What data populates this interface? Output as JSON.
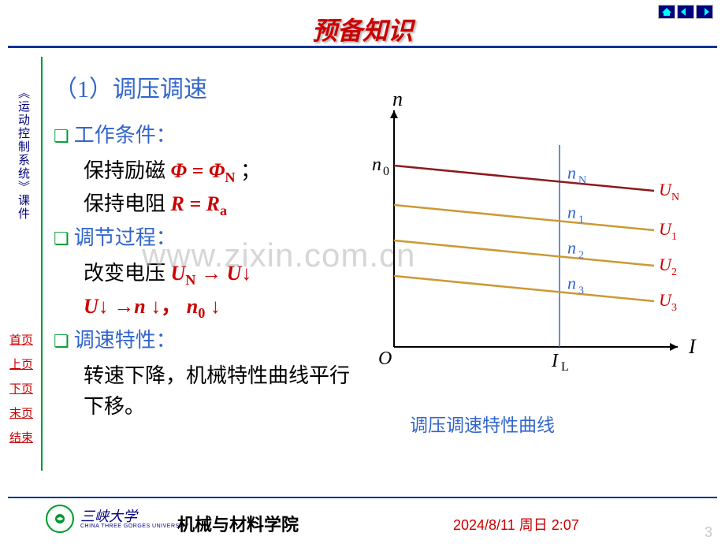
{
  "header": {
    "title": "预备知识",
    "title_color": "#cc0000"
  },
  "sidebar": {
    "vertical_label": "《运动控制系统》课件",
    "nav_items": [
      "首页",
      "上页",
      "下页",
      "末页",
      "结束"
    ]
  },
  "content": {
    "heading": "（1）调压调速",
    "points": [
      {
        "label": "工作条件：",
        "lines": [
          {
            "pre": "保持励磁 ",
            "formula": "Φ = Φ",
            "sub": "N",
            "post": " ；"
          },
          {
            "pre": "保持电阻 ",
            "formula": "R = R",
            "sub": "a",
            "post": ""
          }
        ]
      },
      {
        "label": "调节过程：",
        "lines": [
          {
            "pre": "改变电压 ",
            "formula": "U",
            "sub": "N",
            "arrow": " → ",
            "formula2": "U",
            "down": "↓"
          },
          {
            "full_red": true,
            "t1": "U",
            "d1": "↓ →",
            "t2": "n ",
            "d2": "↓，  ",
            "t3": "n",
            "sub3": "0",
            "d3": " ↓"
          }
        ]
      },
      {
        "label": "调速特性：",
        "lines": [
          {
            "plain": "转速下降，机械特性曲线平行下移。"
          }
        ]
      }
    ]
  },
  "chart": {
    "type": "line",
    "axes": {
      "x_label": "I",
      "y_label": "n",
      "origin_label": "O",
      "xtick_label": "I",
      "xtick_sub": "L",
      "ytick_label": "n",
      "ytick_sub": "0"
    },
    "x_range": [
      0,
      400
    ],
    "y_range": [
      0,
      300
    ],
    "xtick_pos": 210,
    "ytick_pos": 70,
    "lines": [
      {
        "label": "U",
        "sub": "N",
        "color": "#8b1a1a",
        "y1": 70,
        "y2": 102,
        "pt_label": "n",
        "pt_sub": "N",
        "pt_color": "#3366cc"
      },
      {
        "label": "U",
        "sub": "1",
        "color": "#cc9933",
        "y1": 120,
        "y2": 152,
        "pt_label": "n",
        "pt_sub": "1",
        "pt_color": "#3366cc"
      },
      {
        "label": "U",
        "sub": "2",
        "color": "#cc9933",
        "y1": 165,
        "y2": 197,
        "pt_label": "n",
        "pt_sub": "2",
        "pt_color": "#3366cc"
      },
      {
        "label": "U",
        "sub": "3",
        "color": "#cc9933",
        "y1": 210,
        "y2": 242,
        "pt_label": "n",
        "pt_sub": "3",
        "pt_color": "#3366cc"
      }
    ],
    "axis_color": "#000000",
    "vline_color": "#3366cc",
    "caption": "调压调速特性曲线"
  },
  "footer": {
    "university": "三峡大学",
    "university_en": "CHINA THREE GORGES UNIVERSITY",
    "department": "机械与材料学院",
    "timestamp": "2024/8/11 周日 2:07",
    "page": "3"
  },
  "watermark": "www.zixin.com.cn",
  "colors": {
    "divider": "#003399",
    "green_line": "#009933",
    "blue": "#3366cc",
    "red": "#cc0000",
    "navy": "#000080"
  }
}
